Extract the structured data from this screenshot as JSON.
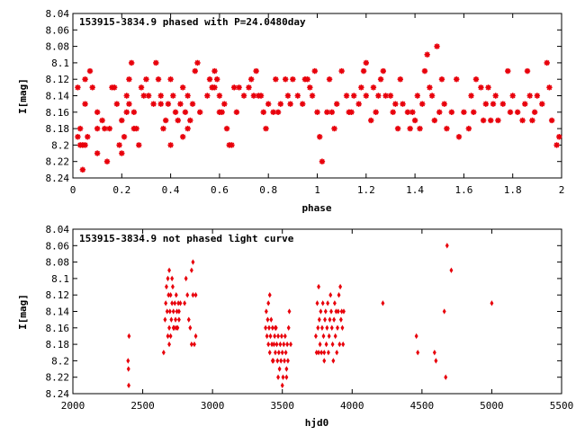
{
  "chart_data": [
    {
      "type": "scatter",
      "title": "153915-3834.9 phased with P=24.0480day",
      "xlabel": "phase",
      "ylabel": "I[mag]",
      "xlim": [
        0,
        2
      ],
      "ylim": [
        8.24,
        8.04
      ],
      "y_inverted": true,
      "grid": false,
      "x_ticks": [
        "0",
        "0.2",
        "0.4",
        "0.6",
        "0.8",
        "1",
        "1.2",
        "1.4",
        "1.6",
        "1.8",
        "2"
      ],
      "y_ticks": [
        "8.04",
        "8.06",
        "8.08",
        "8.1",
        "8.12",
        "8.14",
        "8.16",
        "8.18",
        "8.2",
        "8.22",
        "8.24"
      ],
      "marker_color": "#e8000b",
      "marker": "star",
      "points": [
        [
          0.02,
          8.13
        ],
        [
          0.02,
          8.19
        ],
        [
          0.03,
          8.2
        ],
        [
          0.03,
          8.18
        ],
        [
          0.04,
          8.2
        ],
        [
          0.04,
          8.23
        ],
        [
          0.05,
          8.2
        ],
        [
          0.05,
          8.12
        ],
        [
          0.05,
          8.15
        ],
        [
          0.06,
          8.19
        ],
        [
          0.07,
          8.11
        ],
        [
          0.08,
          8.13
        ],
        [
          0.1,
          8.21
        ],
        [
          0.1,
          8.16
        ],
        [
          0.1,
          8.18
        ],
        [
          0.12,
          8.17
        ],
        [
          0.13,
          8.18
        ],
        [
          0.14,
          8.22
        ],
        [
          0.15,
          8.18
        ],
        [
          0.16,
          8.13
        ],
        [
          0.17,
          8.13
        ],
        [
          0.18,
          8.15
        ],
        [
          0.19,
          8.2
        ],
        [
          0.2,
          8.17
        ],
        [
          0.2,
          8.21
        ],
        [
          0.21,
          8.19
        ],
        [
          0.22,
          8.14
        ],
        [
          0.22,
          8.16
        ],
        [
          0.23,
          8.12
        ],
        [
          0.23,
          8.15
        ],
        [
          0.24,
          8.1
        ],
        [
          0.25,
          8.16
        ],
        [
          0.25,
          8.18
        ],
        [
          0.26,
          8.18
        ],
        [
          0.27,
          8.2
        ],
        [
          0.28,
          8.13
        ],
        [
          0.29,
          8.14
        ],
        [
          0.3,
          8.12
        ],
        [
          0.31,
          8.14
        ],
        [
          0.33,
          8.15
        ],
        [
          0.34,
          8.1
        ],
        [
          0.35,
          8.12
        ],
        [
          0.36,
          8.15
        ],
        [
          0.36,
          8.14
        ],
        [
          0.37,
          8.18
        ],
        [
          0.38,
          8.17
        ],
        [
          0.39,
          8.15
        ],
        [
          0.4,
          8.12
        ],
        [
          0.4,
          8.2
        ],
        [
          0.41,
          8.14
        ],
        [
          0.42,
          8.16
        ],
        [
          0.43,
          8.17
        ],
        [
          0.44,
          8.15
        ],
        [
          0.45,
          8.13
        ],
        [
          0.45,
          8.19
        ],
        [
          0.46,
          8.16
        ],
        [
          0.47,
          8.14
        ],
        [
          0.47,
          8.18
        ],
        [
          0.48,
          8.17
        ],
        [
          0.49,
          8.15
        ],
        [
          0.5,
          8.11
        ],
        [
          0.51,
          8.1
        ],
        [
          0.52,
          8.16
        ],
        [
          0.55,
          8.14
        ],
        [
          0.56,
          8.12
        ],
        [
          0.57,
          8.13
        ],
        [
          0.57,
          8.13
        ],
        [
          0.58,
          8.11
        ],
        [
          0.58,
          8.13
        ],
        [
          0.59,
          8.12
        ],
        [
          0.6,
          8.14
        ],
        [
          0.6,
          8.16
        ],
        [
          0.61,
          8.16
        ],
        [
          0.62,
          8.15
        ],
        [
          0.63,
          8.18
        ],
        [
          0.64,
          8.2
        ],
        [
          0.65,
          8.2
        ],
        [
          0.66,
          8.13
        ],
        [
          0.67,
          8.16
        ],
        [
          0.68,
          8.13
        ],
        [
          0.7,
          8.14
        ],
        [
          0.72,
          8.13
        ],
        [
          0.73,
          8.12
        ],
        [
          0.74,
          8.14
        ],
        [
          0.75,
          8.11
        ],
        [
          0.76,
          8.14
        ],
        [
          0.77,
          8.14
        ],
        [
          0.78,
          8.16
        ],
        [
          0.79,
          8.18
        ],
        [
          0.8,
          8.15
        ],
        [
          0.82,
          8.16
        ],
        [
          0.83,
          8.12
        ],
        [
          0.84,
          8.16
        ],
        [
          0.85,
          8.15
        ],
        [
          0.87,
          8.12
        ],
        [
          0.88,
          8.14
        ],
        [
          0.89,
          8.15
        ],
        [
          0.9,
          8.12
        ],
        [
          0.92,
          8.14
        ],
        [
          0.94,
          8.15
        ],
        [
          0.95,
          8.12
        ],
        [
          0.96,
          8.12
        ],
        [
          0.97,
          8.13
        ],
        [
          0.98,
          8.14
        ],
        [
          0.99,
          8.11
        ],
        [
          1.0,
          8.16
        ],
        [
          1.01,
          8.19
        ],
        [
          1.02,
          8.22
        ],
        [
          1.04,
          8.16
        ],
        [
          1.05,
          8.12
        ],
        [
          1.06,
          8.16
        ],
        [
          1.07,
          8.18
        ],
        [
          1.08,
          8.15
        ],
        [
          1.1,
          8.11
        ],
        [
          1.12,
          8.14
        ],
        [
          1.13,
          8.16
        ],
        [
          1.14,
          8.16
        ],
        [
          1.15,
          8.14
        ],
        [
          1.17,
          8.15
        ],
        [
          1.18,
          8.13
        ],
        [
          1.19,
          8.11
        ],
        [
          1.2,
          8.1
        ],
        [
          1.2,
          8.14
        ],
        [
          1.22,
          8.17
        ],
        [
          1.23,
          8.13
        ],
        [
          1.24,
          8.16
        ],
        [
          1.25,
          8.14
        ],
        [
          1.26,
          8.12
        ],
        [
          1.27,
          8.11
        ],
        [
          1.28,
          8.14
        ],
        [
          1.3,
          8.14
        ],
        [
          1.31,
          8.16
        ],
        [
          1.32,
          8.15
        ],
        [
          1.33,
          8.18
        ],
        [
          1.34,
          8.12
        ],
        [
          1.35,
          8.15
        ],
        [
          1.37,
          8.16
        ],
        [
          1.38,
          8.18
        ],
        [
          1.39,
          8.16
        ],
        [
          1.4,
          8.17
        ],
        [
          1.41,
          8.14
        ],
        [
          1.42,
          8.18
        ],
        [
          1.43,
          8.15
        ],
        [
          1.44,
          8.11
        ],
        [
          1.45,
          8.09
        ],
        [
          1.46,
          8.13
        ],
        [
          1.47,
          8.14
        ],
        [
          1.48,
          8.17
        ],
        [
          1.49,
          8.08
        ],
        [
          1.5,
          8.16
        ],
        [
          1.51,
          8.12
        ],
        [
          1.52,
          8.15
        ],
        [
          1.53,
          8.18
        ],
        [
          1.55,
          8.16
        ],
        [
          1.57,
          8.12
        ],
        [
          1.58,
          8.19
        ],
        [
          1.6,
          8.16
        ],
        [
          1.62,
          8.18
        ],
        [
          1.63,
          8.14
        ],
        [
          1.64,
          8.16
        ],
        [
          1.65,
          8.12
        ],
        [
          1.67,
          8.13
        ],
        [
          1.68,
          8.17
        ],
        [
          1.69,
          8.15
        ],
        [
          1.7,
          8.13
        ],
        [
          1.71,
          8.17
        ],
        [
          1.72,
          8.15
        ],
        [
          1.73,
          8.14
        ],
        [
          1.74,
          8.17
        ],
        [
          1.76,
          8.15
        ],
        [
          1.78,
          8.11
        ],
        [
          1.79,
          8.16
        ],
        [
          1.8,
          8.14
        ],
        [
          1.82,
          8.16
        ],
        [
          1.84,
          8.17
        ],
        [
          1.85,
          8.15
        ],
        [
          1.86,
          8.11
        ],
        [
          1.87,
          8.14
        ],
        [
          1.88,
          8.17
        ],
        [
          1.89,
          8.16
        ],
        [
          1.9,
          8.14
        ],
        [
          1.92,
          8.15
        ],
        [
          1.94,
          8.1
        ],
        [
          1.95,
          8.13
        ],
        [
          1.96,
          8.17
        ],
        [
          1.98,
          8.2
        ],
        [
          1.99,
          8.19
        ]
      ]
    },
    {
      "type": "scatter",
      "title": "153915-3834.9 not phased light curve",
      "xlabel": "hjd0",
      "ylabel": "I[mag]",
      "xlim": [
        2000,
        5500
      ],
      "ylim": [
        8.24,
        8.04
      ],
      "y_inverted": true,
      "grid": false,
      "x_ticks": [
        "2000",
        "2500",
        "3000",
        "3500",
        "4000",
        "4500",
        "5000",
        "5500"
      ],
      "y_ticks": [
        "8.04",
        "8.06",
        "8.08",
        "8.1",
        "8.12",
        "8.14",
        "8.16",
        "8.18",
        "8.2",
        "8.22",
        "8.24"
      ],
      "marker_color": "#e8000b",
      "marker": "diamond",
      "points": [
        [
          2395,
          8.2
        ],
        [
          2398,
          8.21
        ],
        [
          2400,
          8.23
        ],
        [
          2402,
          8.17
        ],
        [
          2650,
          8.19
        ],
        [
          2660,
          8.15
        ],
        [
          2665,
          8.13
        ],
        [
          2670,
          8.11
        ],
        [
          2675,
          8.14
        ],
        [
          2680,
          8.1
        ],
        [
          2685,
          8.12
        ],
        [
          2690,
          8.16
        ],
        [
          2695,
          8.14
        ],
        [
          2700,
          8.12
        ],
        [
          2705,
          8.15
        ],
        [
          2710,
          8.13
        ],
        [
          2715,
          8.11
        ],
        [
          2720,
          8.14
        ],
        [
          2725,
          8.16
        ],
        [
          2730,
          8.13
        ],
        [
          2735,
          8.15
        ],
        [
          2740,
          8.12
        ],
        [
          2745,
          8.14
        ],
        [
          2750,
          8.16
        ],
        [
          2755,
          8.13
        ],
        [
          2760,
          8.15
        ],
        [
          2680,
          8.17
        ],
        [
          2690,
          8.18
        ],
        [
          2700,
          8.17
        ],
        [
          2720,
          8.16
        ],
        [
          2740,
          8.16
        ],
        [
          2760,
          8.14
        ],
        [
          2770,
          8.13
        ],
        [
          2710,
          8.1
        ],
        [
          2690,
          8.09
        ],
        [
          2800,
          8.13
        ],
        [
          2810,
          8.1
        ],
        [
          2820,
          8.12
        ],
        [
          2830,
          8.15
        ],
        [
          2840,
          8.16
        ],
        [
          2850,
          8.18
        ],
        [
          2860,
          8.12
        ],
        [
          2870,
          8.18
        ],
        [
          2880,
          8.17
        ],
        [
          2850,
          8.09
        ],
        [
          2860,
          8.08
        ],
        [
          2880,
          8.12
        ],
        [
          3380,
          8.16
        ],
        [
          3385,
          8.14
        ],
        [
          3390,
          8.17
        ],
        [
          3395,
          8.15
        ],
        [
          3400,
          8.18
        ],
        [
          3405,
          8.16
        ],
        [
          3410,
          8.19
        ],
        [
          3415,
          8.17
        ],
        [
          3420,
          8.15
        ],
        [
          3425,
          8.18
        ],
        [
          3430,
          8.16
        ],
        [
          3435,
          8.2
        ],
        [
          3440,
          8.18
        ],
        [
          3445,
          8.17
        ],
        [
          3450,
          8.19
        ],
        [
          3455,
          8.16
        ],
        [
          3460,
          8.18
        ],
        [
          3465,
          8.2
        ],
        [
          3470,
          8.17
        ],
        [
          3475,
          8.19
        ],
        [
          3480,
          8.21
        ],
        [
          3485,
          8.18
        ],
        [
          3490,
          8.2
        ],
        [
          3495,
          8.17
        ],
        [
          3500,
          8.19
        ],
        [
          3505,
          8.22
        ],
        [
          3510,
          8.18
        ],
        [
          3515,
          8.2
        ],
        [
          3520,
          8.17
        ],
        [
          3525,
          8.19
        ],
        [
          3530,
          8.21
        ],
        [
          3535,
          8.18
        ],
        [
          3540,
          8.2
        ],
        [
          3545,
          8.16
        ],
        [
          3550,
          8.14
        ],
        [
          3560,
          8.18
        ],
        [
          3400,
          8.13
        ],
        [
          3410,
          8.12
        ],
        [
          3430,
          8.2
        ],
        [
          3470,
          8.22
        ],
        [
          3500,
          8.23
        ],
        [
          3530,
          8.22
        ],
        [
          3450,
          8.16
        ],
        [
          3740,
          8.17
        ],
        [
          3745,
          8.19
        ],
        [
          3750,
          8.13
        ],
        [
          3755,
          8.16
        ],
        [
          3760,
          8.11
        ],
        [
          3765,
          8.15
        ],
        [
          3770,
          8.18
        ],
        [
          3775,
          8.14
        ],
        [
          3780,
          8.19
        ],
        [
          3785,
          8.16
        ],
        [
          3790,
          8.13
        ],
        [
          3795,
          8.17
        ],
        [
          3800,
          8.2
        ],
        [
          3805,
          8.15
        ],
        [
          3810,
          8.14
        ],
        [
          3815,
          8.18
        ],
        [
          3820,
          8.16
        ],
        [
          3825,
          8.13
        ],
        [
          3830,
          8.19
        ],
        [
          3835,
          8.17
        ],
        [
          3840,
          8.15
        ],
        [
          3845,
          8.12
        ],
        [
          3850,
          8.14
        ],
        [
          3855,
          8.16
        ],
        [
          3860,
          8.18
        ],
        [
          3865,
          8.2
        ],
        [
          3870,
          8.15
        ],
        [
          3875,
          8.13
        ],
        [
          3880,
          8.17
        ],
        [
          3885,
          8.14
        ],
        [
          3890,
          8.19
        ],
        [
          3895,
          8.16
        ],
        [
          3900,
          8.14
        ],
        [
          3905,
          8.12
        ],
        [
          3910,
          8.18
        ],
        [
          3915,
          8.11
        ],
        [
          3920,
          8.15
        ],
        [
          3925,
          8.14
        ],
        [
          3930,
          8.16
        ],
        [
          3935,
          8.18
        ],
        [
          3940,
          8.14
        ],
        [
          3760,
          8.19
        ],
        [
          3800,
          8.19
        ],
        [
          4220,
          8.13
        ],
        [
          4460,
          8.17
        ],
        [
          4470,
          8.19
        ],
        [
          4590,
          8.19
        ],
        [
          4600,
          8.2
        ],
        [
          4660,
          8.14
        ],
        [
          4670,
          8.22
        ],
        [
          4680,
          8.06
        ],
        [
          4710,
          8.09
        ],
        [
          5000,
          8.13
        ]
      ]
    }
  ]
}
